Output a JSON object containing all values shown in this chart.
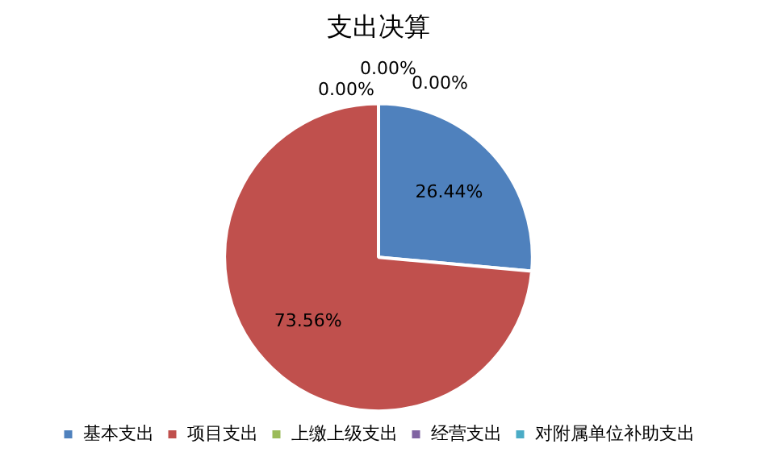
{
  "chart_data": {
    "type": "pie",
    "title": "支出决算",
    "categories": [
      "基本支出",
      "项目支出",
      "上缴上级支出",
      "经营支出",
      "对附属单位补助支出"
    ],
    "values": [
      26.44,
      73.56,
      0,
      0,
      0
    ],
    "colors": [
      "#4f81bd",
      "#c0504d",
      "#9bbb59",
      "#8064a2",
      "#4bacc6"
    ],
    "value_labels": [
      "26.44%",
      "73.56%",
      "0.00%",
      "0.00%",
      "0.00%"
    ],
    "legend": "bottom"
  }
}
